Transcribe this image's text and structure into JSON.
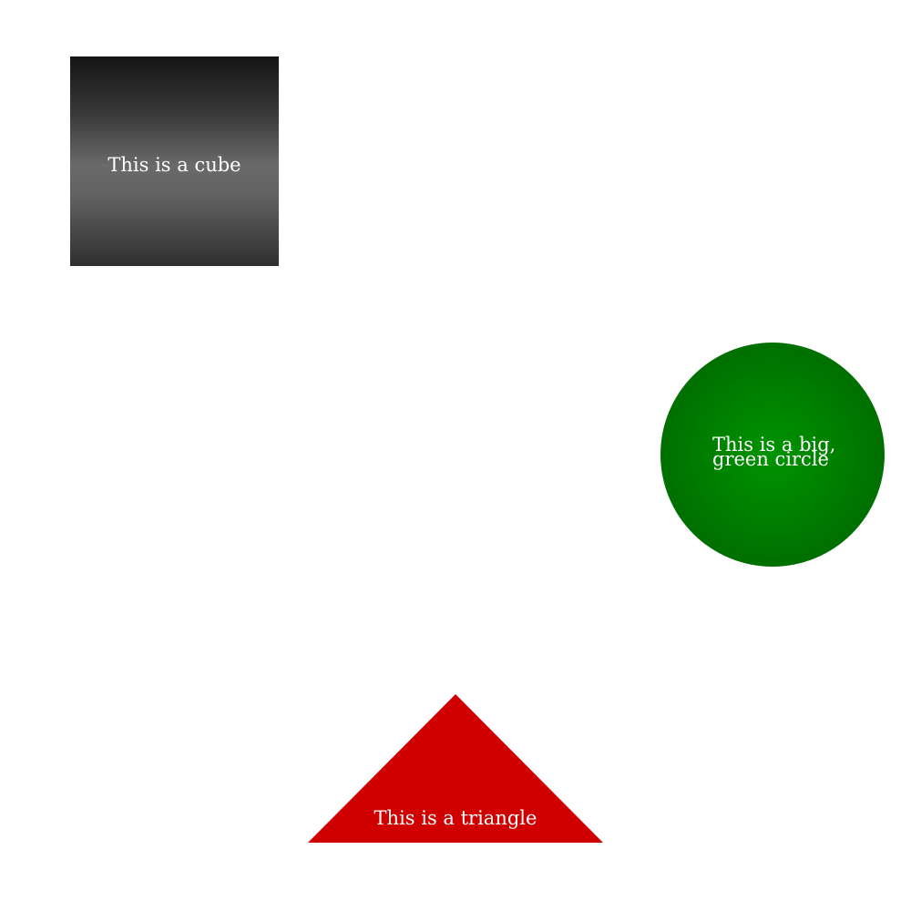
{
  "shapes": {
    "cube": {
      "label": "This is a cube",
      "color": "#666666"
    },
    "circle": {
      "label_line1": "This is a big,",
      "label_line2": "green circle",
      "color": "#008000"
    },
    "triangle": {
      "label": "This is a triangle",
      "color": "#d10000"
    }
  }
}
